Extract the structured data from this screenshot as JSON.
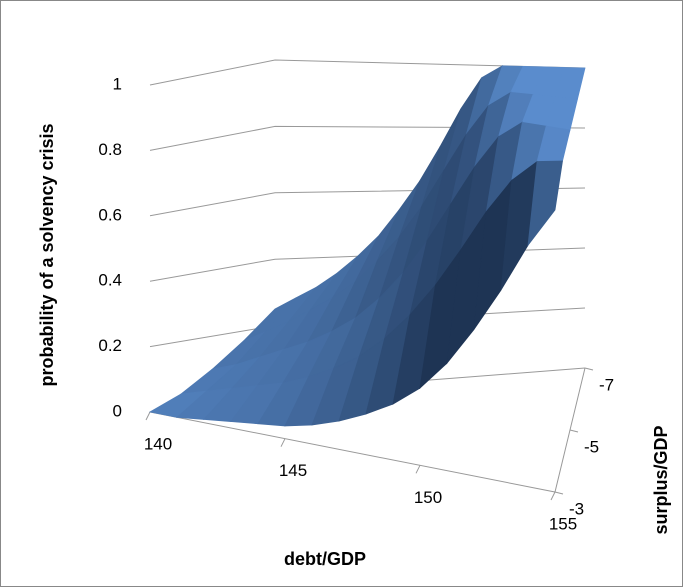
{
  "chart_data": {
    "type": "surface",
    "x_label": "debt/GDP",
    "z_label": "probability of a solvency crisis",
    "depth_label": "surplus/GDP",
    "x": [
      140,
      141,
      142,
      143,
      144,
      145,
      146,
      147,
      148,
      149,
      150,
      151,
      152,
      153,
      154,
      155
    ],
    "xlim": [
      140,
      155
    ],
    "xticks": [
      140,
      145,
      150,
      155
    ],
    "depth": [
      -7,
      -6,
      -5,
      -4,
      -3
    ],
    "depthlim": [
      -7,
      -3
    ],
    "depthticks": [
      -7,
      -5,
      -3
    ],
    "zlim": [
      0,
      1
    ],
    "zticks": [
      0,
      0.2,
      0.4,
      0.6,
      0.8,
      1
    ],
    "color": "#4f81bd",
    "grid": true,
    "values": [
      [
        0.25,
        0.28,
        0.31,
        0.35,
        0.4,
        0.46,
        0.54,
        0.63,
        0.74,
        0.86,
        0.96,
        1,
        1,
        1,
        1,
        1
      ],
      [
        0.17,
        0.2,
        0.23,
        0.27,
        0.31,
        0.36,
        0.43,
        0.51,
        0.61,
        0.73,
        0.85,
        0.95,
        1,
        1,
        1,
        1
      ],
      [
        0.1,
        0.12,
        0.15,
        0.18,
        0.21,
        0.25,
        0.3,
        0.37,
        0.46,
        0.57,
        0.7,
        0.83,
        0.94,
        1,
        1,
        1
      ],
      [
        0.04,
        0.06,
        0.08,
        0.1,
        0.12,
        0.15,
        0.19,
        0.24,
        0.31,
        0.4,
        0.51,
        0.64,
        0.78,
        0.9,
        0.98,
        1
      ],
      [
        0,
        0,
        0.01,
        0.02,
        0.03,
        0.04,
        0.06,
        0.09,
        0.13,
        0.18,
        0.25,
        0.35,
        0.48,
        0.63,
        0.8,
        0.94
      ]
    ]
  }
}
